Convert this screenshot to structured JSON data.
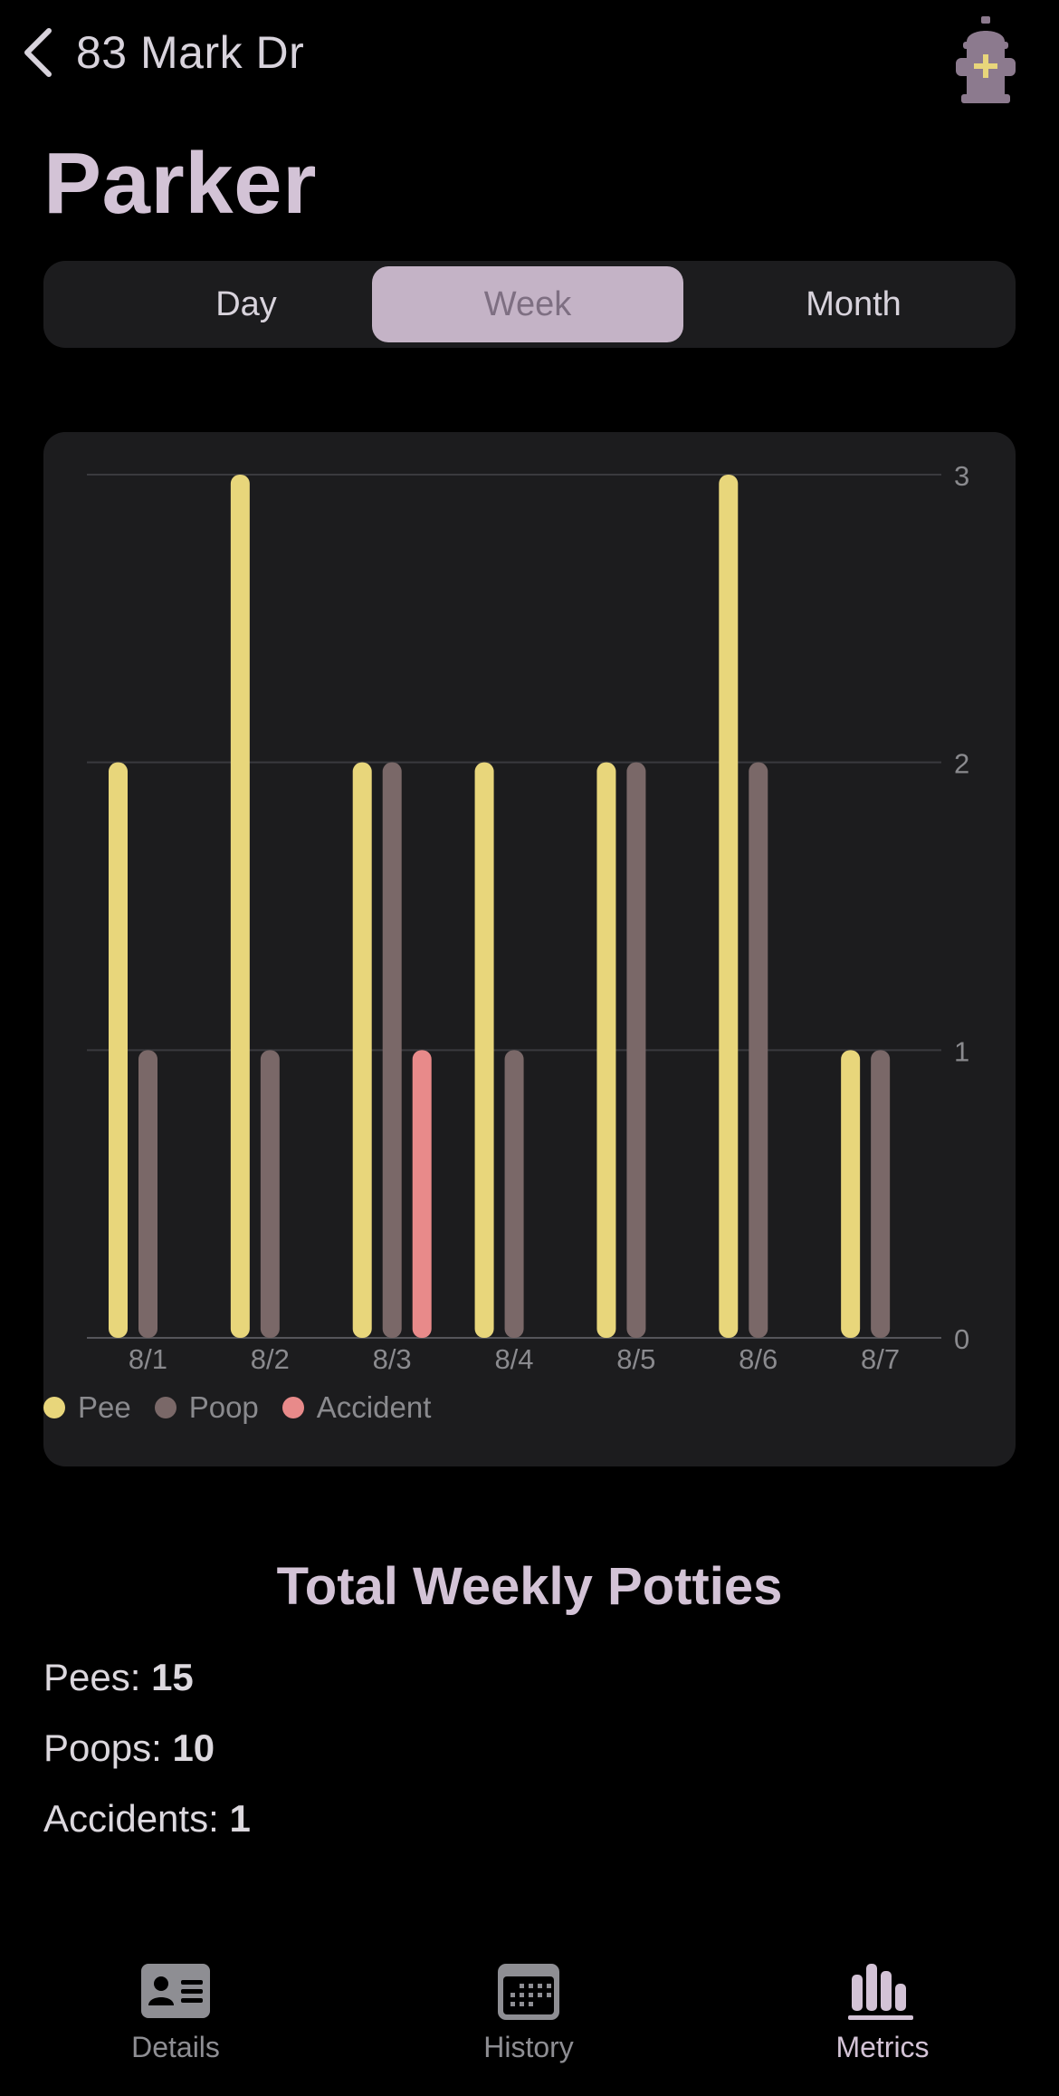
{
  "nav": {
    "back_label": "83 Mark Dr"
  },
  "page_title": "Parker",
  "segments": {
    "items": [
      "Day",
      "Week",
      "Month"
    ],
    "selected": "Week"
  },
  "colors": {
    "pee": "#e8d67b",
    "poop": "#7a6868",
    "accident": "#e88a8a",
    "accent": "#d3c3d6"
  },
  "chart_data": {
    "type": "bar",
    "categories": [
      "8/1",
      "8/2",
      "8/3",
      "8/4",
      "8/5",
      "8/6",
      "8/7"
    ],
    "series": [
      {
        "name": "Pee",
        "values": [
          2,
          3,
          2,
          2,
          2,
          3,
          1
        ]
      },
      {
        "name": "Poop",
        "values": [
          1,
          1,
          2,
          1,
          2,
          2,
          1
        ]
      },
      {
        "name": "Accident",
        "values": [
          0,
          0,
          1,
          0,
          0,
          0,
          0
        ]
      }
    ],
    "ylim": [
      0,
      3
    ],
    "y_ticks": [
      "0",
      "1",
      "2",
      "3"
    ],
    "grid": true,
    "legend_position": "bottom-left"
  },
  "totals": {
    "title": "Total Weekly Potties",
    "pees_label": "Pees:",
    "pees_value": "15",
    "poops_label": "Poops:",
    "poops_value": "10",
    "accidents_label": "Accidents:",
    "accidents_value": "1"
  },
  "tabbar": {
    "items": [
      {
        "label": "Details",
        "icon": "contact-card-icon"
      },
      {
        "label": "History",
        "icon": "calendar-icon"
      },
      {
        "label": "Metrics",
        "icon": "bar-chart-icon"
      }
    ],
    "selected": "Metrics"
  }
}
